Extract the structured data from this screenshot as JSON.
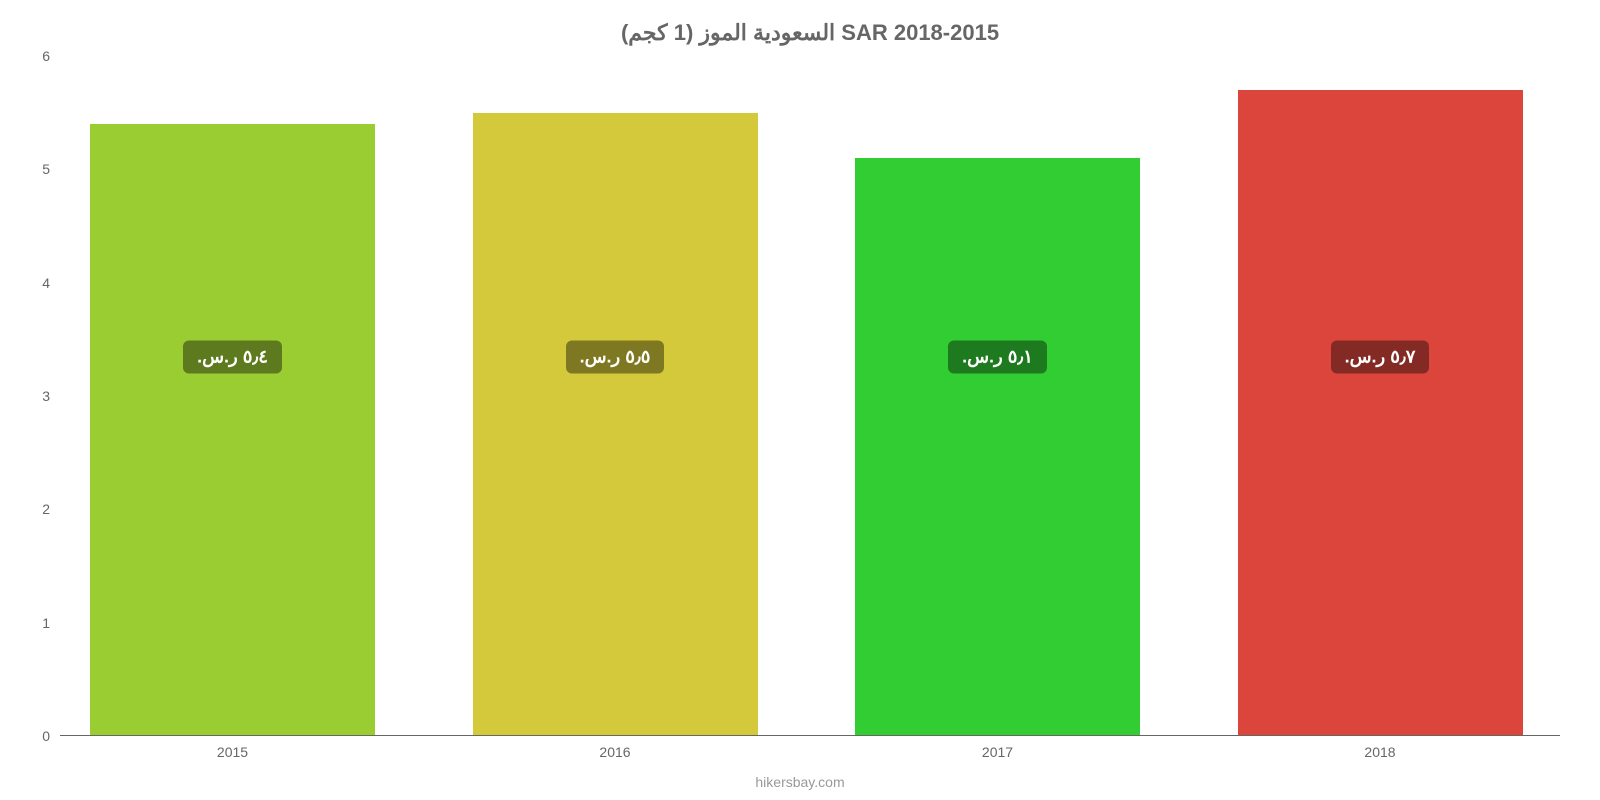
{
  "chart": {
    "type": "bar",
    "title": "السعودية الموز (1 كجم) SAR 2018-2015",
    "title_fontsize": 22,
    "title_color": "#666666",
    "footer": "hikersbay.com",
    "footer_fontsize": 14,
    "footer_color": "#999999",
    "background_color": "#ffffff",
    "axis_color": "#666666",
    "tick_fontsize": 14,
    "label_fontsize": 18,
    "ylim": [
      0,
      6
    ],
    "yticks": [
      0,
      1,
      2,
      3,
      4,
      5,
      6
    ],
    "categories": [
      "2015",
      "2016",
      "2017",
      "2018"
    ],
    "values": [
      5.4,
      5.5,
      5.1,
      5.7
    ],
    "bar_colors": [
      "#9acd32",
      "#d4c93a",
      "#32cd32",
      "#dc453c"
    ],
    "bar_label_bg": [
      "#5d7a1f",
      "#7f7823",
      "#1e7a1e",
      "#842a24"
    ],
    "bar_labels": [
      "٥٫٤ ر.س.",
      "٥٫٥ ر.س.",
      "٥٫١ ر.س.",
      "٥٫٧ ر.س."
    ],
    "bar_width_pct": 19,
    "bar_gap_pct": 6.5,
    "bar_start_pct": 2,
    "label_at_value": 3.05
  }
}
